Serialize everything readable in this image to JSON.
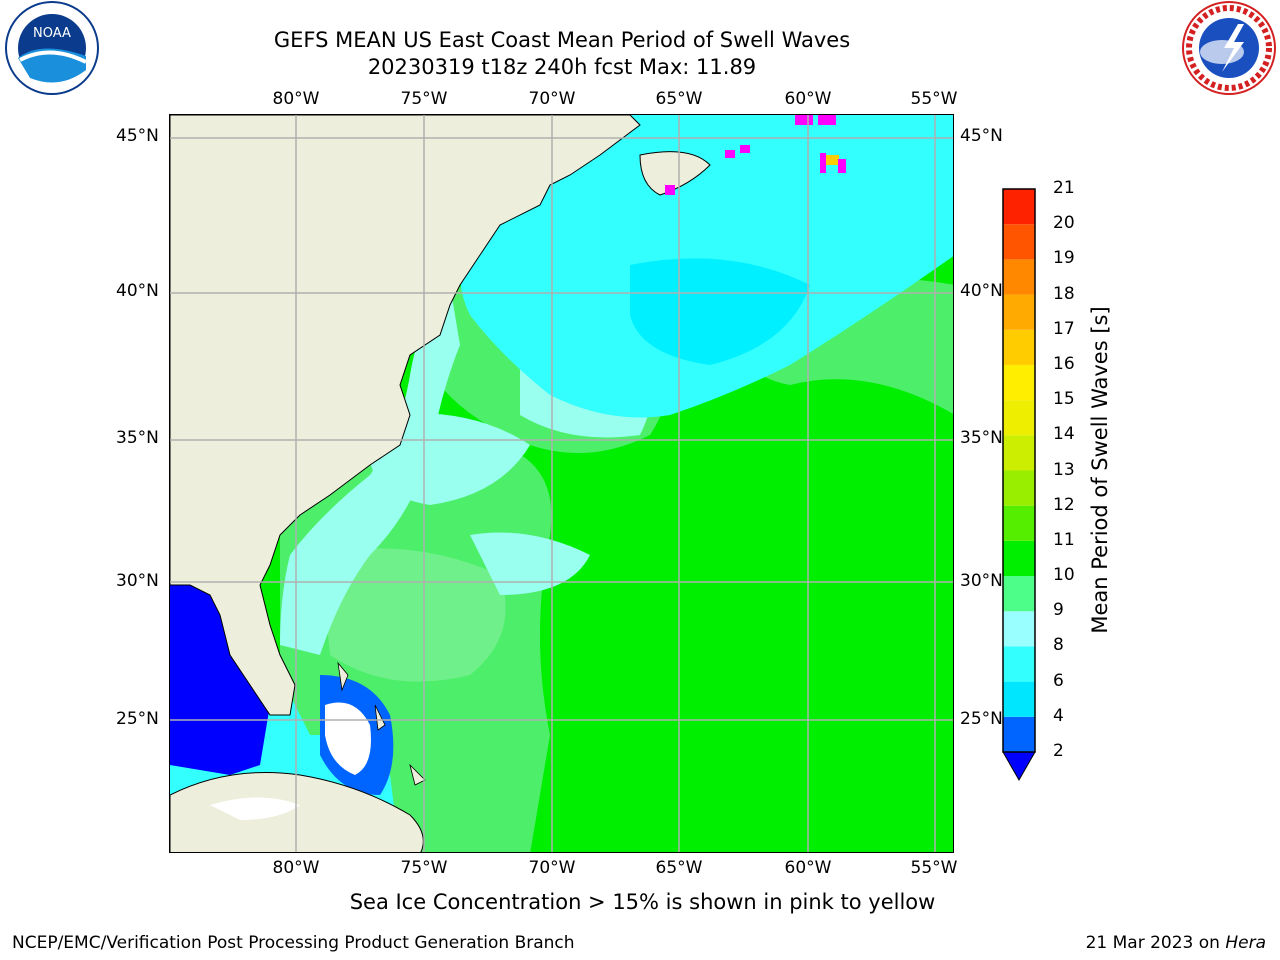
{
  "title": {
    "line1": "GEFS MEAN US East Coast Mean Period of Swell Waves",
    "line2": "20230319 t18z 240h fcst   Max: 11.89"
  },
  "logos": {
    "left": {
      "icon": "noaa-logo",
      "text": "NOAA"
    },
    "right": {
      "icon": "national-weather-service-logo",
      "text": "NATIONAL WEATHER SERVICE"
    }
  },
  "map": {
    "lon_labels": [
      "80°W",
      "75°W",
      "70°W",
      "65°W",
      "60°W",
      "55°W"
    ],
    "lat_labels": [
      "45°N",
      "40°N",
      "35°N",
      "30°N",
      "25°N"
    ],
    "land_color": "#eeeedd",
    "gridline_color": "#b0b0b0"
  },
  "colorbar": {
    "title": "Mean Period of Swell Waves [s]",
    "ticks": [
      "2",
      "4",
      "6",
      "8",
      "9",
      "10",
      "11",
      "12",
      "13",
      "14",
      "15",
      "16",
      "17",
      "18",
      "19",
      "20",
      "21"
    ],
    "colors": [
      "#0064ff",
      "#00e6ff",
      "#33ffff",
      "#99ffff",
      "#4dff88",
      "#00ee00",
      "#55ee00",
      "#99ee00",
      "#ccee00",
      "#eeee00",
      "#ffee00",
      "#ffcc00",
      "#ffaa00",
      "#ff8800",
      "#ff5500",
      "#ff2200"
    ],
    "extend_color": "#0000ff"
  },
  "note": "Sea Ice Concentration > 15% is shown in pink to yellow",
  "footer": {
    "left": "NCEP/EMC/Verification Post Processing Product Generation Branch",
    "date": "21 Mar 2023 on ",
    "machine": "Hera"
  }
}
